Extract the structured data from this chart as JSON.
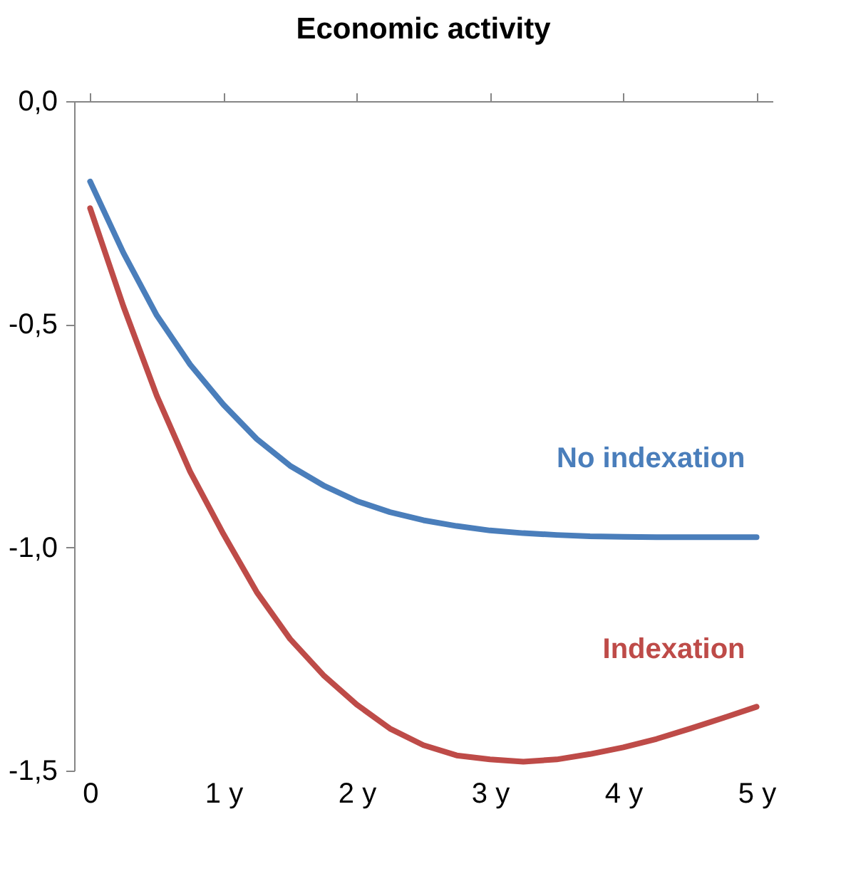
{
  "chart_data": {
    "type": "line",
    "title": "Economic activity",
    "x": [
      0,
      0.25,
      0.5,
      0.75,
      1,
      1.25,
      1.5,
      1.75,
      2,
      2.25,
      2.5,
      2.75,
      3,
      3.25,
      3.5,
      3.75,
      4,
      4.25,
      4.5,
      4.75,
      5
    ],
    "series": [
      {
        "name": "No indexation",
        "color": "#4a7ebb",
        "values": [
          -0.18,
          -0.34,
          -0.48,
          -0.59,
          -0.68,
          -0.757,
          -0.817,
          -0.861,
          -0.896,
          -0.921,
          -0.939,
          -0.952,
          -0.962,
          -0.968,
          -0.972,
          -0.975,
          -0.976,
          -0.977,
          -0.977,
          -0.977,
          -0.977
        ]
      },
      {
        "name": "Indexation",
        "color": "#be4b48",
        "values": [
          -0.24,
          -0.46,
          -0.66,
          -0.83,
          -0.97,
          -1.1,
          -1.205,
          -1.286,
          -1.352,
          -1.406,
          -1.443,
          -1.466,
          -1.475,
          -1.48,
          -1.475,
          -1.463,
          -1.448,
          -1.429,
          -1.406,
          -1.382,
          -1.357
        ]
      }
    ],
    "xlim": [
      -0.12,
      5.12
    ],
    "xticks": [
      0,
      {
        "value": 1,
        "label": "1 y"
      },
      {
        "value": 2,
        "label": "2 y"
      },
      {
        "value": 3,
        "label": "3 y"
      },
      {
        "value": 4,
        "label": "4 y"
      },
      {
        "value": 5,
        "label": "5 y"
      }
    ],
    "ylim": [
      -1.5,
      0
    ],
    "yticks": [
      {
        "value": 0,
        "label": "0,0"
      },
      {
        "value": -0.5,
        "label": "-0,5"
      },
      {
        "value": -1,
        "label": "-1,0"
      },
      {
        "value": -1.5,
        "label": "-1,5"
      }
    ],
    "line_style": "solid"
  }
}
